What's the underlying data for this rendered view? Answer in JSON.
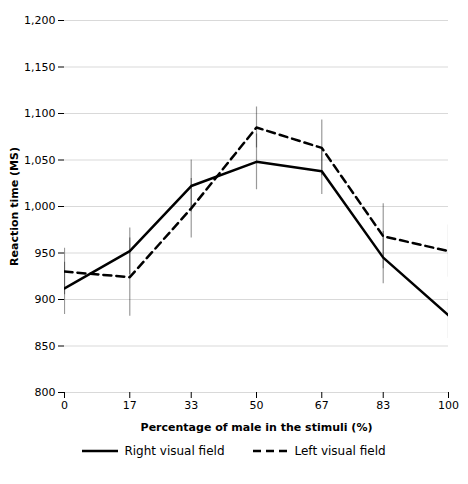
{
  "chart_data": {
    "type": "line",
    "xlabel": "Percentage of male in the stimuli (%)",
    "ylabel": "Reaction time (MS)",
    "x": [
      0,
      17,
      33,
      50,
      67,
      83,
      100
    ],
    "series": [
      {
        "name": "Right visual field",
        "color": "#000000",
        "line_style": "solid",
        "values": [
          912,
          952,
          1022,
          1048,
          1038,
          945,
          883
        ],
        "errors": [
          28,
          25,
          28,
          30,
          25,
          28,
          25
        ]
      },
      {
        "name": "Left visual field",
        "color": "#000000",
        "line_style": "dashed",
        "values": [
          930,
          924,
          998,
          1085,
          1063,
          968,
          952
        ],
        "errors": [
          25,
          42,
          32,
          22,
          30,
          35,
          28
        ]
      }
    ],
    "xlim": [
      0,
      100
    ],
    "xticks": [
      0,
      17,
      33,
      50,
      67,
      83,
      100
    ],
    "ylim": [
      800,
      1200
    ],
    "yticks": [
      800,
      850,
      900,
      950,
      {
        "value": 1000,
        "label": "1,000"
      },
      {
        "value": 1050,
        "label": "1,050"
      },
      {
        "value": 1100,
        "label": "1,100"
      },
      {
        "value": 1150,
        "label": "1,150"
      },
      {
        "value": 1200,
        "label": "1,200"
      }
    ],
    "grid": true,
    "legend": "bottom"
  }
}
